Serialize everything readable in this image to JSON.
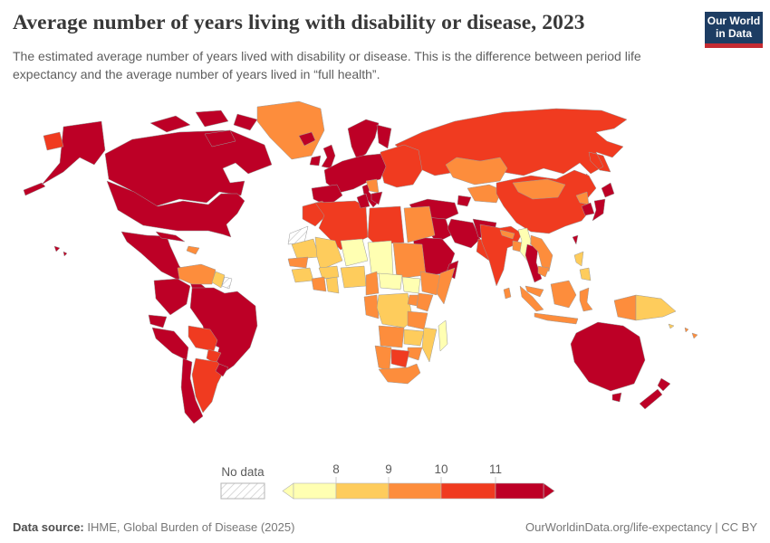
{
  "header": {
    "title": "Average number of years living with disability or disease, 2023",
    "subtitle": "The estimated average number of years lived with disability or disease. This is the difference between period life expectancy and the average number of years lived in “full health”."
  },
  "logo": {
    "line1": "Our World",
    "line2": "in Data",
    "bg_color": "#1d3d63",
    "stripe_color": "#c52b32"
  },
  "legend": {
    "no_data_label": "No data",
    "ticks": [
      "8",
      "9",
      "10",
      "11"
    ]
  },
  "footer": {
    "source_label": "Data source:",
    "source_text": " IHME, Global Burden of Disease (2025)",
    "right_text": "OurWorldinData.org/life-expectancy | CC BY"
  },
  "chart_data": {
    "type": "choropleth_map",
    "title": "Average number of years living with disability or disease",
    "year": 2023,
    "unit": "years",
    "legend_ticks": [
      8,
      9,
      10,
      11
    ],
    "color_scale": {
      "bins": [
        {
          "range": "<8",
          "color": "#FFFFB2"
        },
        {
          "range": "8-9",
          "color": "#FECC5C"
        },
        {
          "range": "9-10",
          "color": "#FD8D3C"
        },
        {
          "range": "10-11",
          "color": "#F03B20"
        },
        {
          "range": ">11",
          "color": "#BD0026"
        }
      ],
      "no_data": {
        "range": "no data",
        "style": "hatched"
      }
    },
    "regions": [
      {
        "id": "russia",
        "name": "Russia",
        "range": "10-11"
      },
      {
        "id": "canada",
        "name": "Canada",
        "range": ">11"
      },
      {
        "id": "canadian-arctic",
        "name": "Canadian Arctic Islands",
        "range": ">11"
      },
      {
        "id": "greenland",
        "name": "Greenland",
        "range": "9-10"
      },
      {
        "id": "aleutians",
        "name": "Aleutian Islands (US)",
        "range": ">11"
      },
      {
        "id": "alaska",
        "name": "Alaska (US)",
        "range": ">11"
      },
      {
        "id": "chukotka",
        "name": "Chukotka (Russia)",
        "range": "10-11"
      },
      {
        "id": "usa",
        "name": "United States",
        "range": ">11"
      },
      {
        "id": "hawaii",
        "name": "Hawaii (US)",
        "range": ">11"
      },
      {
        "id": "mexico",
        "name": "Mexico",
        "range": ">11"
      },
      {
        "id": "central-america",
        "name": "Central America",
        "range": ">11"
      },
      {
        "id": "cuba",
        "name": "Cuba",
        "range": ">11"
      },
      {
        "id": "hispaniola",
        "name": "Haiti / Dominican Rep.",
        "range": "9-10"
      },
      {
        "id": "venezuela",
        "name": "Venezuela",
        "range": "9-10"
      },
      {
        "id": "guyana",
        "name": "Guyana",
        "range": "8-9"
      },
      {
        "id": "suriname",
        "name": "Suriname",
        "range": "no data"
      },
      {
        "id": "colombia",
        "name": "Colombia",
        "range": ">11"
      },
      {
        "id": "ecuador",
        "name": "Ecuador",
        "range": ">11"
      },
      {
        "id": "peru",
        "name": "Peru",
        "range": ">11"
      },
      {
        "id": "brazil",
        "name": "Brazil",
        "range": ">11"
      },
      {
        "id": "bolivia",
        "name": "Bolivia",
        "range": "10-11"
      },
      {
        "id": "paraguay",
        "name": "Paraguay",
        "range": "10-11"
      },
      {
        "id": "argentina",
        "name": "Argentina",
        "range": "10-11"
      },
      {
        "id": "chile",
        "name": "Chile",
        "range": ">11"
      },
      {
        "id": "uruguay",
        "name": "Uruguay",
        "range": ">11"
      },
      {
        "id": "iceland",
        "name": "Iceland",
        "range": ">11"
      },
      {
        "id": "ireland",
        "name": "Ireland",
        "range": ">11"
      },
      {
        "id": "uk",
        "name": "United Kingdom",
        "range": ">11"
      },
      {
        "id": "scandinavia",
        "name": "Norway / Sweden",
        "range": ">11"
      },
      {
        "id": "finland",
        "name": "Finland",
        "range": ">11"
      },
      {
        "id": "eastern-europe",
        "name": "Ukraine / Belarus / Baltics / Romania",
        "range": "10-11"
      },
      {
        "id": "western-europe",
        "name": "Western & Central Europe",
        "range": ">11"
      },
      {
        "id": "iberia",
        "name": "Spain / Portugal",
        "range": ">11"
      },
      {
        "id": "italy",
        "name": "Italy",
        "range": ">11"
      },
      {
        "id": "balkans",
        "name": "Serbia / Albania",
        "range": "9-10"
      },
      {
        "id": "greece",
        "name": "Greece",
        "range": ">11"
      },
      {
        "id": "kazakhstan",
        "name": "Kazakhstan",
        "range": "9-10"
      },
      {
        "id": "central-asia",
        "name": "Central Asia",
        "range": "9-10"
      },
      {
        "id": "caucasus",
        "name": "Caucasus",
        "range": ">11"
      },
      {
        "id": "turkey",
        "name": "Turkey",
        "range": ">11"
      },
      {
        "id": "syria-iraq",
        "name": "Syria / Iraq",
        "range": ">11"
      },
      {
        "id": "iran",
        "name": "Iran",
        "range": ">11"
      },
      {
        "id": "afghanistan",
        "name": "Afghanistan",
        "range": ">11"
      },
      {
        "id": "pakistan",
        "name": "Pakistan",
        "range": "10-11"
      },
      {
        "id": "saudi-arabia",
        "name": "Saudi Arabia",
        "range": ">11"
      },
      {
        "id": "yemen",
        "name": "Yemen",
        "range": "10-11"
      },
      {
        "id": "oman",
        "name": "Oman",
        "range": ">11"
      },
      {
        "id": "china",
        "name": "China",
        "range": "10-11"
      },
      {
        "id": "mongolia",
        "name": "Mongolia",
        "range": "9-10"
      },
      {
        "id": "north-korea",
        "name": "North Korea",
        "range": "9-10"
      },
      {
        "id": "south-korea",
        "name": "South Korea",
        "range": ">11"
      },
      {
        "id": "japan",
        "name": "Japan",
        "range": ">11"
      },
      {
        "id": "taiwan",
        "name": "Taiwan",
        "range": ">11"
      },
      {
        "id": "india",
        "name": "India",
        "range": "10-11"
      },
      {
        "id": "nepal",
        "name": "Nepal",
        "range": "9-10"
      },
      {
        "id": "bangladesh",
        "name": "Bangladesh",
        "range": "9-10"
      },
      {
        "id": "sri-lanka",
        "name": "Sri Lanka",
        "range": "9-10"
      },
      {
        "id": "myanmar",
        "name": "Myanmar",
        "range": "<8"
      },
      {
        "id": "thailand",
        "name": "Thailand",
        "range": ">11"
      },
      {
        "id": "laos-vietnam",
        "name": "Laos / Vietnam",
        "range": "9-10"
      },
      {
        "id": "cambodia",
        "name": "Cambodia",
        "range": "9-10"
      },
      {
        "id": "malaysia",
        "name": "Malaysia",
        "range": "9-10"
      },
      {
        "id": "indonesia",
        "name": "Indonesia",
        "range": "9-10"
      },
      {
        "id": "philippines",
        "name": "Philippines",
        "range": "8-9"
      },
      {
        "id": "west-new-guinea",
        "name": "Papua (Indonesia)",
        "range": "9-10"
      },
      {
        "id": "papua-new-guinea",
        "name": "Papua New Guinea",
        "range": "8-9"
      },
      {
        "id": "solomon-islands",
        "name": "Solomon Islands",
        "range": "8-9"
      },
      {
        "id": "fiji",
        "name": "Fiji / Vanuatu",
        "range": "9-10"
      },
      {
        "id": "australia",
        "name": "Australia",
        "range": ">11"
      },
      {
        "id": "tasmania",
        "name": "Tasmania (Australia)",
        "range": ">11"
      },
      {
        "id": "new-zealand",
        "name": "New Zealand",
        "range": ">11"
      },
      {
        "id": "morocco",
        "name": "Morocco",
        "range": "10-11"
      },
      {
        "id": "western-sahara",
        "name": "Western Sahara",
        "range": "no data"
      },
      {
        "id": "algeria",
        "name": "Algeria",
        "range": "10-11"
      },
      {
        "id": "tunisia",
        "name": "Tunisia",
        "range": ">11"
      },
      {
        "id": "libya",
        "name": "Libya",
        "range": "10-11"
      },
      {
        "id": "egypt",
        "name": "Egypt",
        "range": "9-10"
      },
      {
        "id": "mauritania",
        "name": "Mauritania",
        "range": "8-9"
      },
      {
        "id": "mali",
        "name": "Mali",
        "range": "8-9"
      },
      {
        "id": "niger",
        "name": "Niger",
        "range": "<8"
      },
      {
        "id": "chad",
        "name": "Chad",
        "range": "<8"
      },
      {
        "id": "sudan",
        "name": "Sudan",
        "range": "9-10"
      },
      {
        "id": "senegal",
        "name": "Senegal",
        "range": "9-10"
      },
      {
        "id": "guinea",
        "name": "Guinea",
        "range": "8-9"
      },
      {
        "id": "burkina-faso",
        "name": "Burkina Faso",
        "range": "8-9"
      },
      {
        "id": "ivory-coast",
        "name": "Côte d'Ivoire",
        "range": "9-10"
      },
      {
        "id": "ghana",
        "name": "Ghana",
        "range": "8-9"
      },
      {
        "id": "nigeria",
        "name": "Nigeria",
        "range": "8-9"
      },
      {
        "id": "cameroon",
        "name": "Cameroon",
        "range": "9-10"
      },
      {
        "id": "central-african-republic",
        "name": "Central African Republic",
        "range": "<8"
      },
      {
        "id": "south-sudan",
        "name": "South Sudan",
        "range": "<8"
      },
      {
        "id": "ethiopia",
        "name": "Ethiopia",
        "range": "9-10"
      },
      {
        "id": "somalia",
        "name": "Somalia",
        "range": "9-10"
      },
      {
        "id": "gabon-congo",
        "name": "Gabon / Congo",
        "range": "9-10"
      },
      {
        "id": "drc",
        "name": "Democratic Republic of Congo",
        "range": "8-9"
      },
      {
        "id": "uganda",
        "name": "Uganda",
        "range": "9-10"
      },
      {
        "id": "kenya",
        "name": "Kenya",
        "range": "9-10"
      },
      {
        "id": "tanzania",
        "name": "Tanzania",
        "range": "9-10"
      },
      {
        "id": "angola",
        "name": "Angola",
        "range": "9-10"
      },
      {
        "id": "zambia",
        "name": "Zambia",
        "range": "8-9"
      },
      {
        "id": "mozambique",
        "name": "Mozambique",
        "range": "8-9"
      },
      {
        "id": "zimbabwe",
        "name": "Zimbabwe",
        "range": "9-10"
      },
      {
        "id": "botswana",
        "name": "Botswana",
        "range": "10-11"
      },
      {
        "id": "namibia",
        "name": "Namibia",
        "range": "9-10"
      },
      {
        "id": "south-africa",
        "name": "South Africa",
        "range": "9-10"
      },
      {
        "id": "madagascar",
        "name": "Madagascar",
        "range": "<8"
      }
    ]
  }
}
